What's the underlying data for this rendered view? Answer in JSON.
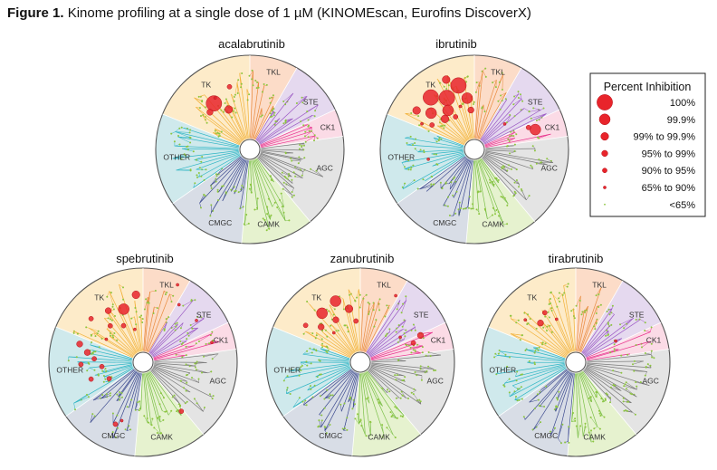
{
  "figure": {
    "label": "Figure 1.",
    "caption": "Kinome profiling at a single dose of 1 µM (KINOMEscan, Eurofins DiscoverX)"
  },
  "colors": {
    "TK": "#fdebc9",
    "TKL": "#fcdcc8",
    "STE": "#e5d9ef",
    "CK1": "#fbdbe6",
    "AGC": "#e4e4e4",
    "CAMK": "#e6f2cf",
    "CMGC": "#d8dde6",
    "OTHER": "#cfe9ec",
    "hit": "#e8242b",
    "miss": "#8dc63f",
    "branch_TK": "#f2b23b",
    "branch_TKL": "#e98a3c",
    "branch_STE": "#9b59c4",
    "branch_CK1": "#e8338e",
    "branch_AGC": "#7a7a7a",
    "branch_CAMK": "#7cc04a",
    "branch_CMGC": "#3d4b8f",
    "branch_OTHER": "#2eb5c4"
  },
  "legend": {
    "title": "Percent Inhibition",
    "entries": [
      {
        "label": "100%",
        "size": 6
      },
      {
        "label": "99.9%",
        "size": 5
      },
      {
        "label": "99% to 99.9%",
        "size": 4
      },
      {
        "label": "95% to 99%",
        "size": 3
      },
      {
        "label": "90% to 95%",
        "size": 2
      },
      {
        "label": "65% to 90%",
        "size": 1
      },
      {
        "label": "<65%",
        "size": 0
      }
    ]
  },
  "chart_data": [
    {
      "type": "scatter",
      "title": "acalabrutinib",
      "families": [
        "TK",
        "TKL",
        "STE",
        "CK1",
        "AGC",
        "CAMK",
        "CMGC",
        "OTHER"
      ],
      "hits": [
        {
          "family": "TK",
          "angle": 128,
          "r": 0.62,
          "size": 6
        },
        {
          "family": "TK",
          "angle": 118,
          "r": 0.48,
          "size": 4
        },
        {
          "family": "TK",
          "angle": 137,
          "r": 0.58,
          "size": 3
        },
        {
          "family": "TK",
          "angle": 108,
          "r": 0.7,
          "size": 2
        },
        {
          "family": "TK",
          "angle": 124,
          "r": 0.66,
          "size": 1
        }
      ]
    },
    {
      "type": "scatter",
      "title": "ibrutinib",
      "families": [
        "TK",
        "TKL",
        "STE",
        "CK1",
        "AGC",
        "CAMK",
        "CMGC",
        "OTHER"
      ],
      "hits": [
        {
          "family": "TK",
          "angle": 130,
          "r": 0.72,
          "size": 6
        },
        {
          "family": "TK",
          "angle": 118,
          "r": 0.62,
          "size": 6
        },
        {
          "family": "TK",
          "angle": 104,
          "r": 0.7,
          "size": 6
        },
        {
          "family": "TK",
          "angle": 140,
          "r": 0.6,
          "size": 5
        },
        {
          "family": "TK",
          "angle": 124,
          "r": 0.5,
          "size": 5
        },
        {
          "family": "TK",
          "angle": 98,
          "r": 0.55,
          "size": 5
        },
        {
          "family": "TK",
          "angle": 146,
          "r": 0.74,
          "size": 4
        },
        {
          "family": "TK",
          "angle": 112,
          "r": 0.8,
          "size": 4
        },
        {
          "family": "TK",
          "angle": 134,
          "r": 0.45,
          "size": 4
        },
        {
          "family": "TK",
          "angle": 95,
          "r": 0.42,
          "size": 3
        },
        {
          "family": "TK",
          "angle": 150,
          "r": 0.52,
          "size": 2
        },
        {
          "family": "TK",
          "angle": 120,
          "r": 0.4,
          "size": 2
        },
        {
          "family": "TK",
          "angle": 108,
          "r": 0.48,
          "size": 1
        },
        {
          "family": "TK",
          "angle": 154,
          "r": 0.62,
          "size": 1
        },
        {
          "family": "CK1",
          "angle": 18,
          "r": 0.68,
          "size": 5
        },
        {
          "family": "CK1",
          "angle": 22,
          "r": 0.62,
          "size": 2
        },
        {
          "family": "STE",
          "angle": 40,
          "r": 0.42,
          "size": 1
        },
        {
          "family": "OTHER",
          "angle": 192,
          "r": 0.5,
          "size": 1
        }
      ]
    },
    {
      "type": "scatter",
      "title": "spebrutinib",
      "families": [
        "TK",
        "TKL",
        "STE",
        "CK1",
        "AGC",
        "CAMK",
        "CMGC",
        "OTHER"
      ],
      "hits": [
        {
          "family": "TK",
          "angle": 110,
          "r": 0.6,
          "size": 5
        },
        {
          "family": "TK",
          "angle": 96,
          "r": 0.72,
          "size": 4
        },
        {
          "family": "TK",
          "angle": 124,
          "r": 0.66,
          "size": 3
        },
        {
          "family": "TK",
          "angle": 132,
          "r": 0.52,
          "size": 2
        },
        {
          "family": "TK",
          "angle": 140,
          "r": 0.72,
          "size": 2
        },
        {
          "family": "TK",
          "angle": 118,
          "r": 0.44,
          "size": 2
        },
        {
          "family": "TK",
          "angle": 104,
          "r": 0.36,
          "size": 1
        },
        {
          "family": "TK",
          "angle": 148,
          "r": 0.46,
          "size": 1
        },
        {
          "family": "OTHER",
          "angle": 164,
          "r": 0.7,
          "size": 3
        },
        {
          "family": "OTHER",
          "angle": 170,
          "r": 0.6,
          "size": 3
        },
        {
          "family": "OTHER",
          "angle": 176,
          "r": 0.52,
          "size": 2
        },
        {
          "family": "OTHER",
          "angle": 182,
          "r": 0.66,
          "size": 2
        },
        {
          "family": "OTHER",
          "angle": 186,
          "r": 0.44,
          "size": 2
        },
        {
          "family": "OTHER",
          "angle": 198,
          "r": 0.58,
          "size": 2
        },
        {
          "family": "OTHER",
          "angle": 206,
          "r": 0.4,
          "size": 2
        },
        {
          "family": "CMGC",
          "angle": 246,
          "r": 0.72,
          "size": 2
        },
        {
          "family": "CMGC",
          "angle": 250,
          "r": 0.66,
          "size": 1
        },
        {
          "family": "CAMK",
          "angle": 308,
          "r": 0.66,
          "size": 2
        },
        {
          "family": "TKL",
          "angle": 66,
          "r": 0.9,
          "size": 1
        },
        {
          "family": "TKL",
          "angle": 58,
          "r": 0.72,
          "size": 1
        },
        {
          "family": "STE",
          "angle": 38,
          "r": 0.72,
          "size": 1
        },
        {
          "family": "CK1",
          "angle": 16,
          "r": 0.76,
          "size": 1
        }
      ]
    },
    {
      "type": "scatter",
      "title": "zanubrutinib",
      "families": [
        "TK",
        "TKL",
        "STE",
        "CK1",
        "AGC",
        "CAMK",
        "CMGC",
        "OTHER"
      ],
      "hits": [
        {
          "family": "TK",
          "angle": 128,
          "r": 0.66,
          "size": 5
        },
        {
          "family": "TK",
          "angle": 112,
          "r": 0.7,
          "size": 5
        },
        {
          "family": "TK",
          "angle": 102,
          "r": 0.58,
          "size": 4
        },
        {
          "family": "TK",
          "angle": 138,
          "r": 0.56,
          "size": 3
        },
        {
          "family": "TK",
          "angle": 120,
          "r": 0.52,
          "size": 3
        },
        {
          "family": "TK",
          "angle": 146,
          "r": 0.7,
          "size": 2
        },
        {
          "family": "TK",
          "angle": 96,
          "r": 0.44,
          "size": 2
        },
        {
          "family": "TK",
          "angle": 132,
          "r": 0.42,
          "size": 1
        },
        {
          "family": "CK1",
          "angle": 24,
          "r": 0.7,
          "size": 3
        },
        {
          "family": "CK1",
          "angle": 20,
          "r": 0.6,
          "size": 2
        },
        {
          "family": "STE",
          "angle": 32,
          "r": 0.5,
          "size": 1
        },
        {
          "family": "TKL",
          "angle": 62,
          "r": 0.8,
          "size": 1
        }
      ]
    },
    {
      "type": "scatter",
      "title": "tirabrutinib",
      "families": [
        "TK",
        "TKL",
        "STE",
        "CK1",
        "AGC",
        "CAMK",
        "CMGC",
        "OTHER"
      ],
      "hits": [
        {
          "family": "TK",
          "angle": 132,
          "r": 0.56,
          "size": 3
        },
        {
          "family": "TK",
          "angle": 122,
          "r": 0.62,
          "size": 2
        },
        {
          "family": "TK",
          "angle": 140,
          "r": 0.7,
          "size": 1
        },
        {
          "family": "TK",
          "angle": 114,
          "r": 0.5,
          "size": 1
        },
        {
          "family": "STE",
          "angle": 28,
          "r": 0.48,
          "size": 1
        }
      ]
    }
  ]
}
